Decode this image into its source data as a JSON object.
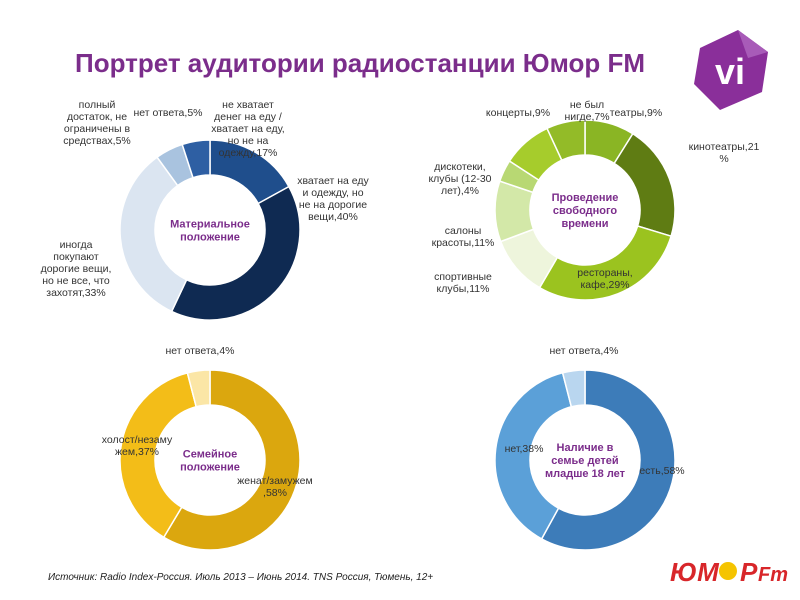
{
  "title": "Портрет аудитории радиостанции Юмор FM",
  "source": "Источник: Radio Index-Россия. Июль 2013 – Июнь 2014. TNS Россия, Тюмень, 12+",
  "logo_vi": "vi",
  "brand": {
    "part1": "ЮМ",
    "part2": "Р",
    "part3": "Fm"
  },
  "colors": {
    "title": "#7b2d8b",
    "brand_red": "#d8262a",
    "brand_yellow": "#f5c400"
  },
  "chart_data": [
    {
      "type": "pie",
      "center_label": [
        "Материальное",
        "положение"
      ],
      "slices": [
        {
          "label": "не хватает денег на еду / хватает на еду, но не на одежду",
          "value": 17,
          "color": "#1f4e8c",
          "text": [
            "не хватает",
            "денег на еду /",
            "хватает на еду,",
            "но не на",
            "одежду,17%"
          ]
        },
        {
          "label": "хватает на еду и одежду, но не на дорогие вещи",
          "value": 40,
          "color": "#0f2a52",
          "text": [
            "хватает на еду",
            "и одежду, но",
            "не на дорогие",
            "вещи,40%"
          ]
        },
        {
          "label": "иногда покупают дорогие вещи, но не все, что захотят",
          "value": 33,
          "color": "#dbe5f1",
          "text": [
            "иногда",
            "покупают",
            "дорогие вещи,",
            "но не все, что",
            "захотят,33%"
          ]
        },
        {
          "label": "полный достаток, не ограничены в средствах",
          "value": 5,
          "color": "#a9c3df",
          "text": [
            "полный",
            "достаток, не",
            "ограничены в",
            "средствах,5%"
          ]
        },
        {
          "label": "нет ответа",
          "value": 5,
          "color": "#2e5fa3",
          "text": [
            "нет ответа,5%"
          ]
        }
      ]
    },
    {
      "type": "pie",
      "center_label": [
        "Проведение",
        "свободного",
        "времени"
      ],
      "slices": [
        {
          "label": "театры",
          "value": 9,
          "color": "#8ab524",
          "text": [
            "театры,9%"
          ]
        },
        {
          "label": "кинотеатры",
          "value": 21,
          "color": "#5f7c13",
          "text": [
            "кинотеатры,21",
            "%"
          ]
        },
        {
          "label": "рестораны, кафе",
          "value": 29,
          "color": "#9bc31f",
          "text": [
            "рестораны,",
            "кафе,29%"
          ]
        },
        {
          "label": "спортивные клубы",
          "value": 11,
          "color": "#eef5dc",
          "text": [
            "спортивные",
            "клубы,11%"
          ]
        },
        {
          "label": "салоны красоты",
          "value": 11,
          "color": "#d3e8a8",
          "text": [
            "салоны",
            "красоты,11%"
          ]
        },
        {
          "label": "дискотеки, клубы (12-30 лет)",
          "value": 4,
          "color": "#b8d873",
          "text": [
            "дискотеки,",
            "клубы (12-30",
            "лет),4%"
          ]
        },
        {
          "label": "концерты",
          "value": 9,
          "color": "#a6cc2c",
          "text": [
            "концерты,9%"
          ]
        },
        {
          "label": "не был нигде",
          "value": 7,
          "color": "#93bb28",
          "text": [
            "не был",
            "нигде,7%"
          ]
        }
      ]
    },
    {
      "type": "pie",
      "center_label": [
        "Семейное",
        "положение"
      ],
      "slices": [
        {
          "label": "женат/замужем",
          "value": 58,
          "color": "#dba70e",
          "text": [
            "женат/замужем",
            ",58%"
          ]
        },
        {
          "label": "холост/незамужем",
          "value": 37,
          "color": "#f3bd18",
          "text": [
            "холост/незаму",
            "жем,37%"
          ]
        },
        {
          "label": "нет ответа",
          "value": 4,
          "color": "#fbe6a6",
          "text": [
            "нет ответа,4%"
          ]
        }
      ]
    },
    {
      "type": "pie",
      "center_label": [
        "Наличие в",
        "семье детей",
        "младше 18 лет"
      ],
      "slices": [
        {
          "label": "есть",
          "value": 58,
          "color": "#3d7cb9",
          "text": [
            "есть,58%"
          ]
        },
        {
          "label": "нет",
          "value": 38,
          "color": "#5ba0d8",
          "text": [
            "нет,38%"
          ]
        },
        {
          "label": "нет ответа",
          "value": 4,
          "color": "#b9d6ef",
          "text": [
            "нет ответа,4%"
          ]
        }
      ]
    }
  ]
}
